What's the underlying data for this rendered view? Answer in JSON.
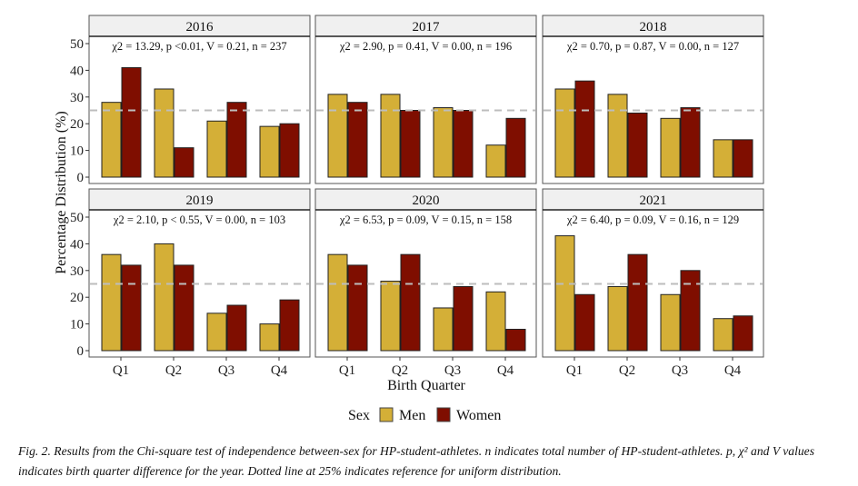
{
  "chart_data": {
    "type": "bar",
    "facet_layout": "2 rows x 3 columns",
    "categories": [
      "Q1",
      "Q2",
      "Q3",
      "Q4"
    ],
    "xlabel": "Birth Quarter",
    "ylabel": "Percentage Distribution (%)",
    "ylim": [
      0,
      50
    ],
    "yticks": [
      0,
      10,
      20,
      30,
      40,
      50
    ],
    "reference_line": {
      "value": 25,
      "style": "dashed",
      "color": "#bdbdbd"
    },
    "legend": {
      "title": "Sex",
      "position": "bottom",
      "entries": [
        {
          "name": "Men",
          "color": "#D4AF37"
        },
        {
          "name": "Women",
          "color": "#7F0E00"
        }
      ]
    },
    "panels": [
      {
        "title": "2016",
        "stats": "χ2 = 13.29, p <0.01, V = 0.21, n = 237",
        "series": [
          {
            "name": "Men",
            "values": [
              28,
              33,
              21,
              19
            ]
          },
          {
            "name": "Women",
            "values": [
              41,
              11,
              28,
              20
            ]
          }
        ]
      },
      {
        "title": "2017",
        "stats": "χ2 = 2.90, p = 0.41, V = 0.00, n = 196",
        "series": [
          {
            "name": "Men",
            "values": [
              31,
              31,
              26,
              12
            ]
          },
          {
            "name": "Women",
            "values": [
              28,
              25,
              25,
              22
            ]
          }
        ]
      },
      {
        "title": "2018",
        "stats": "χ2 = 0.70, p = 0.87, V = 0.00, n = 127",
        "series": [
          {
            "name": "Men",
            "values": [
              33,
              31,
              22,
              14
            ]
          },
          {
            "name": "Women",
            "values": [
              36,
              24,
              26,
              14
            ]
          }
        ]
      },
      {
        "title": "2019",
        "stats": "χ2 = 2.10, p < 0.55, V = 0.00, n = 103",
        "series": [
          {
            "name": "Men",
            "values": [
              36,
              40,
              14,
              10
            ]
          },
          {
            "name": "Women",
            "values": [
              32,
              32,
              17,
              19
            ]
          }
        ]
      },
      {
        "title": "2020",
        "stats": "χ2 = 6.53, p = 0.09, V = 0.15, n = 158",
        "series": [
          {
            "name": "Men",
            "values": [
              36,
              26,
              16,
              22
            ]
          },
          {
            "name": "Women",
            "values": [
              32,
              36,
              24,
              8
            ]
          }
        ]
      },
      {
        "title": "2021",
        "stats": "χ2 = 6.40, p = 0.09, V = 0.16, n = 129",
        "series": [
          {
            "name": "Men",
            "values": [
              43,
              24,
              21,
              12
            ]
          },
          {
            "name": "Women",
            "values": [
              21,
              36,
              30,
              13
            ]
          }
        ]
      }
    ]
  },
  "caption": {
    "label": "Fig. 2.",
    "text": " Results from the Chi-square test of independence between-sex for HP-student-athletes. n indicates total number of HP-student-athletes. p, χ² and V values indicates birth quarter difference for the year. Dotted line at 25% indicates reference for uniform distribution."
  }
}
